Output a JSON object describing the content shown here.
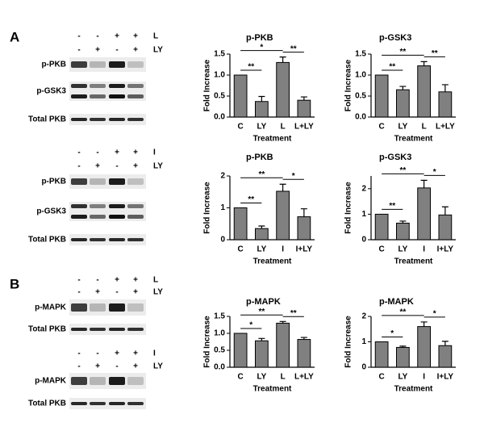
{
  "figure": {
    "panels": [
      "A",
      "B"
    ],
    "blots": [
      {
        "treatment_rows": [
          {
            "signs": [
              "-",
              "-",
              "+",
              "+"
            ],
            "label": "L"
          },
          {
            "signs": [
              "-",
              "+",
              "-",
              "+"
            ],
            "label": "LY"
          }
        ],
        "bands": [
          "p-PKB",
          "p-GSK3",
          "Total PKB"
        ]
      },
      {
        "treatment_rows": [
          {
            "signs": [
              "-",
              "-",
              "+",
              "+"
            ],
            "label": "I"
          },
          {
            "signs": [
              "-",
              "+",
              "-",
              "+"
            ],
            "label": "LY"
          }
        ],
        "bands": [
          "p-PKB",
          "p-GSK3",
          "Total PKB"
        ]
      },
      {
        "treatment_rows": [
          {
            "signs": [
              "-",
              "-",
              "+",
              "+"
            ],
            "label": "L"
          },
          {
            "signs": [
              "-",
              "+",
              "-",
              "+"
            ],
            "label": "LY"
          }
        ],
        "bands": [
          "p-MAPK",
          "Total PKB"
        ]
      },
      {
        "treatment_rows": [
          {
            "signs": [
              "-",
              "-",
              "+",
              "+"
            ],
            "label": "I"
          },
          {
            "signs": [
              "-",
              "+",
              "-",
              "+"
            ],
            "label": "LY"
          }
        ],
        "bands": [
          "p-MAPK",
          "Total PKB"
        ]
      }
    ]
  },
  "chart_data": [
    {
      "type": "bar",
      "title": "p-PKB",
      "x_label": "Treatment",
      "y_label": "Fold Increase",
      "color": "#808080",
      "categories": [
        "C",
        "LY",
        "L",
        "L+LY"
      ],
      "values": [
        1.0,
        0.37,
        1.3,
        0.4
      ],
      "errors": [
        0,
        0.12,
        0.13,
        0.08
      ],
      "ylim": [
        0,
        1.5
      ],
      "yticks": [
        {
          "value": 0,
          "label": "0.0"
        },
        {
          "value": 0.5,
          "label": "0.5"
        },
        {
          "value": 1,
          "label": "1.0"
        },
        {
          "value": 1.5,
          "label": "1.5"
        }
      ],
      "annotations": [
        {
          "text": "**",
          "between": [
            "C",
            "LY"
          ]
        },
        {
          "text": "*",
          "between": [
            "C",
            "L"
          ]
        },
        {
          "text": "**",
          "between": [
            "L",
            "L+LY"
          ]
        }
      ]
    },
    {
      "type": "bar",
      "title": "p-GSK3",
      "x_label": "Treatment",
      "y_label": "Fold Increase",
      "color": "#808080",
      "categories": [
        "C",
        "LY",
        "L",
        "L+LY"
      ],
      "values": [
        1.0,
        0.65,
        1.22,
        0.6
      ],
      "errors": [
        0,
        0.08,
        0.1,
        0.17
      ],
      "ylim": [
        0,
        1.5
      ],
      "yticks": [
        {
          "value": 0,
          "label": "0.0"
        },
        {
          "value": 0.5,
          "label": "0.5"
        },
        {
          "value": 1,
          "label": "1.0"
        },
        {
          "value": 1.5,
          "label": "1.5"
        }
      ],
      "annotations": [
        {
          "text": "**",
          "between": [
            "C",
            "LY"
          ]
        },
        {
          "text": "**",
          "between": [
            "C",
            "L"
          ]
        },
        {
          "text": "**",
          "between": [
            "L",
            "L+LY"
          ]
        }
      ]
    },
    {
      "type": "bar",
      "title": "p-PKB",
      "x_label": "Treatment",
      "y_label": "Fold Increase",
      "color": "#808080",
      "categories": [
        "C",
        "LY",
        "I",
        "I+LY"
      ],
      "values": [
        1.0,
        0.35,
        1.52,
        0.72
      ],
      "errors": [
        0,
        0.08,
        0.22,
        0.25
      ],
      "ylim": [
        0,
        2
      ],
      "yticks": [
        0,
        1,
        2
      ],
      "annotations": [
        {
          "text": "**",
          "between": [
            "C",
            "LY"
          ]
        },
        {
          "text": "**",
          "between": [
            "C",
            "I"
          ]
        },
        {
          "text": "*",
          "between": [
            "I",
            "I+LY"
          ]
        }
      ]
    },
    {
      "type": "bar",
      "title": "p-GSK3",
      "x_label": "Treatment",
      "y_label": "Fold Increase",
      "color": "#808080",
      "categories": [
        "C",
        "LY",
        "I",
        "I+LY"
      ],
      "values": [
        1.0,
        0.65,
        2.03,
        0.97
      ],
      "errors": [
        0,
        0.08,
        0.3,
        0.32
      ],
      "ylim": [
        0,
        2.5
      ],
      "yticks": [
        0,
        1,
        2
      ],
      "annotations": [
        {
          "text": "**",
          "between": [
            "C",
            "LY"
          ]
        },
        {
          "text": "**",
          "between": [
            "C",
            "I"
          ]
        },
        {
          "text": "*",
          "between": [
            "I",
            "I+LY"
          ]
        }
      ]
    },
    {
      "type": "bar",
      "title": "p-MAPK",
      "x_label": "Treatment",
      "y_label": "Fold Increase",
      "color": "#808080",
      "categories": [
        "C",
        "LY",
        "L",
        "L+LY"
      ],
      "values": [
        1.0,
        0.78,
        1.3,
        0.82
      ],
      "errors": [
        0,
        0.07,
        0.05,
        0.06
      ],
      "ylim": [
        0,
        1.5
      ],
      "yticks": [
        {
          "value": 0,
          "label": "0.0"
        },
        {
          "value": 0.5,
          "label": "0.5"
        },
        {
          "value": 1,
          "label": "1.0"
        },
        {
          "value": 1.5,
          "label": "1.5"
        }
      ],
      "annotations": [
        {
          "text": "*",
          "between": [
            "C",
            "LY"
          ]
        },
        {
          "text": "**",
          "between": [
            "C",
            "L"
          ]
        },
        {
          "text": "**",
          "between": [
            "L",
            "L+LY"
          ]
        }
      ]
    },
    {
      "type": "bar",
      "title": "p-MAPK",
      "x_label": "Treatment",
      "y_label": "Fold Increase",
      "color": "#808080",
      "categories": [
        "C",
        "LY",
        "I",
        "I+LY"
      ],
      "values": [
        1.0,
        0.78,
        1.6,
        0.85
      ],
      "errors": [
        0,
        0.05,
        0.18,
        0.17
      ],
      "ylim": [
        0,
        2
      ],
      "yticks": [
        0,
        1,
        2
      ],
      "annotations": [
        {
          "text": "*",
          "between": [
            "C",
            "LY"
          ]
        },
        {
          "text": "**",
          "between": [
            "C",
            "I"
          ]
        },
        {
          "text": "*",
          "between": [
            "I",
            "I+LY"
          ]
        }
      ]
    }
  ]
}
